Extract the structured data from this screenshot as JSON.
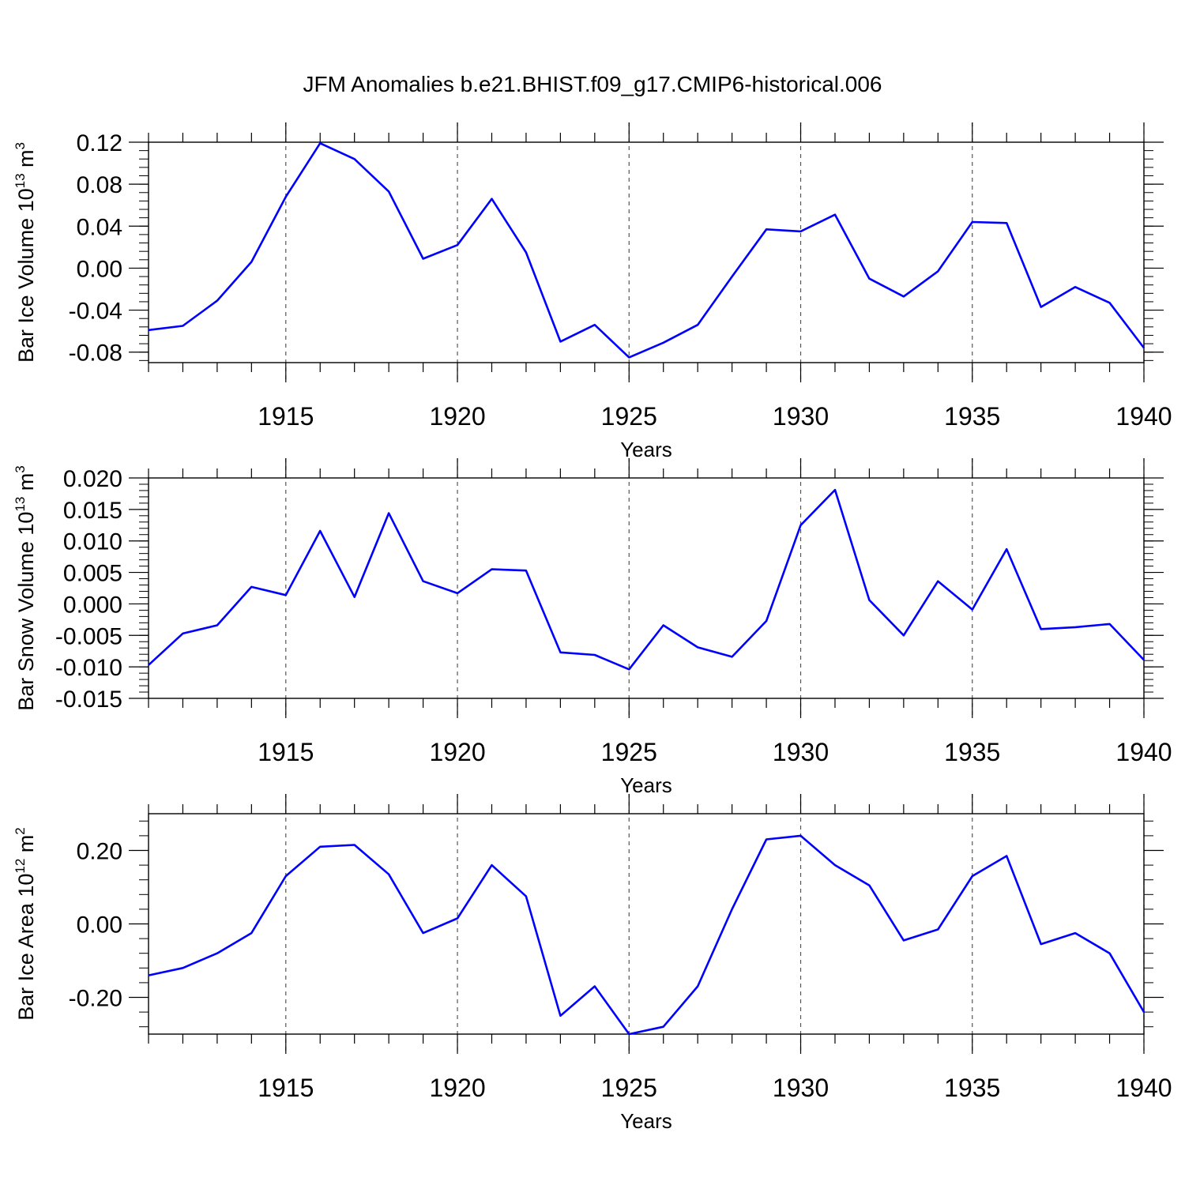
{
  "title": "JFM Anomalies b.e21.BHIST.f09_g17.CMIP6-historical.006",
  "colors": {
    "series": "#0000ff",
    "axis": "#000000",
    "grid": "#555555"
  },
  "chart_data": [
    {
      "type": "line",
      "ylabel": {
        "text": "Bar Ice Volume 10",
        "exp": "13",
        "unit": " m",
        "unit_exp": "3"
      },
      "xlabel": "Years",
      "xlim": [
        1911,
        1940
      ],
      "ylim": [
        -0.09,
        0.12
      ],
      "xticks": [
        1915,
        1920,
        1925,
        1930,
        1935,
        1940
      ],
      "xtick_labels": [
        "1915",
        "1920",
        "1925",
        "1930",
        "1935",
        "1940"
      ],
      "yticks": [
        -0.08,
        -0.04,
        0.0,
        0.04,
        0.08,
        0.12
      ],
      "ytick_labels": [
        "-0.08",
        "-0.04",
        "0.00",
        "0.04",
        "0.08",
        "0.12"
      ],
      "grid": "vertical-dashed",
      "x": [
        1911,
        1912,
        1913,
        1914,
        1915,
        1916,
        1917,
        1918,
        1919,
        1920,
        1921,
        1922,
        1923,
        1924,
        1925,
        1926,
        1927,
        1928,
        1929,
        1930,
        1931,
        1932,
        1933,
        1934,
        1935,
        1936,
        1937,
        1938,
        1939,
        1940
      ],
      "values": [
        -0.059,
        -0.055,
        -0.031,
        0.006,
        0.068,
        0.119,
        0.104,
        0.073,
        0.009,
        0.022,
        0.066,
        0.015,
        -0.07,
        -0.054,
        -0.085,
        -0.071,
        -0.054,
        -0.008,
        0.037,
        0.035,
        0.051,
        -0.01,
        -0.027,
        -0.003,
        0.044,
        0.043,
        -0.037,
        -0.018,
        -0.033,
        -0.076
      ]
    },
    {
      "type": "line",
      "ylabel": {
        "text": "Bar Snow Volume 10",
        "exp": "13",
        "unit": " m",
        "unit_exp": "3"
      },
      "xlabel": "Years",
      "xlim": [
        1911,
        1940
      ],
      "ylim": [
        -0.015,
        0.02
      ],
      "xticks": [
        1915,
        1920,
        1925,
        1930,
        1935,
        1940
      ],
      "xtick_labels": [
        "1915",
        "1920",
        "1925",
        "1930",
        "1935",
        "1940"
      ],
      "yticks": [
        -0.015,
        -0.01,
        -0.005,
        0.0,
        0.005,
        0.01,
        0.015,
        0.02
      ],
      "ytick_labels": [
        "-0.015",
        "-0.010",
        "-0.005",
        "0.000",
        "0.005",
        "0.010",
        "0.015",
        "0.020"
      ],
      "grid": "vertical-dashed",
      "x": [
        1911,
        1912,
        1913,
        1914,
        1915,
        1916,
        1917,
        1918,
        1919,
        1920,
        1921,
        1922,
        1923,
        1924,
        1925,
        1926,
        1927,
        1928,
        1929,
        1930,
        1931,
        1932,
        1933,
        1934,
        1935,
        1936,
        1937,
        1938,
        1939,
        1940
      ],
      "values": [
        -0.0097,
        -0.0047,
        -0.0034,
        0.0027,
        0.0014,
        0.0116,
        0.0011,
        0.0144,
        0.0036,
        0.0017,
        0.0055,
        0.0053,
        -0.0077,
        -0.0081,
        -0.0104,
        -0.0034,
        -0.0069,
        -0.0084,
        -0.0027,
        0.0125,
        0.0181,
        0.0006,
        -0.005,
        0.0036,
        -0.0009,
        0.0087,
        -0.004,
        -0.0037,
        -0.0032,
        -0.0089
      ]
    },
    {
      "type": "line",
      "ylabel": {
        "text": "Bar Ice Area 10",
        "exp": "12",
        "unit": " m",
        "unit_exp": "2"
      },
      "xlabel": "Years",
      "xlim": [
        1911,
        1940
      ],
      "ylim": [
        -0.3,
        0.3
      ],
      "xticks": [
        1915,
        1920,
        1925,
        1930,
        1935,
        1940
      ],
      "xtick_labels": [
        "1915",
        "1920",
        "1925",
        "1930",
        "1935",
        "1940"
      ],
      "yticks": [
        -0.2,
        0.0,
        0.2
      ],
      "ytick_labels": [
        "-0.20",
        "0.00",
        "0.20"
      ],
      "grid": "vertical-dashed",
      "x": [
        1911,
        1912,
        1913,
        1914,
        1915,
        1916,
        1917,
        1918,
        1919,
        1920,
        1921,
        1922,
        1923,
        1924,
        1925,
        1926,
        1927,
        1928,
        1929,
        1930,
        1931,
        1932,
        1933,
        1934,
        1935,
        1936,
        1937,
        1938,
        1939,
        1940
      ],
      "values": [
        -0.14,
        -0.12,
        -0.08,
        -0.025,
        0.13,
        0.21,
        0.215,
        0.135,
        -0.025,
        0.015,
        0.16,
        0.075,
        -0.25,
        -0.17,
        -0.3,
        -0.28,
        -0.17,
        0.04,
        0.23,
        0.24,
        0.16,
        0.105,
        -0.045,
        -0.015,
        0.13,
        0.185,
        -0.055,
        -0.025,
        -0.08,
        -0.24
      ]
    }
  ]
}
